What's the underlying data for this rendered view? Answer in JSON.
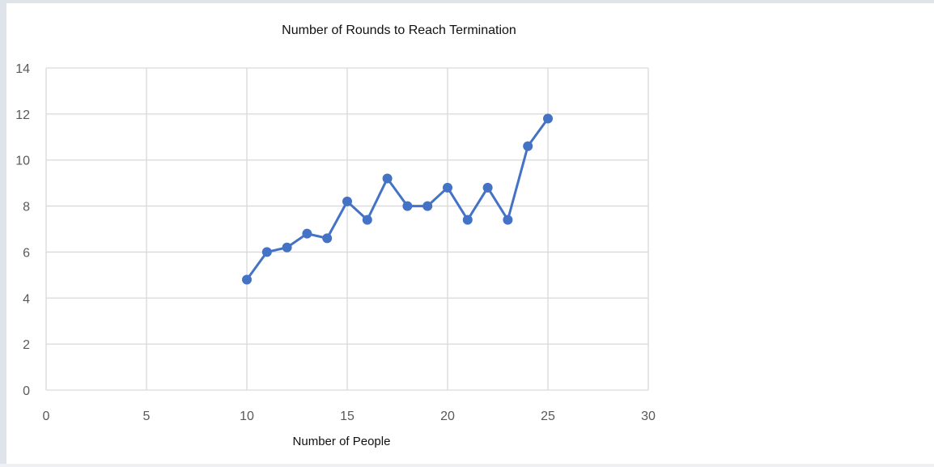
{
  "chart_data": {
    "type": "scatter",
    "title": "Number of Rounds to Reach Termination",
    "xlabel": "Number of People",
    "ylabel": "",
    "xlim": [
      0,
      30
    ],
    "ylim": [
      0,
      14
    ],
    "xticks": [
      0,
      5,
      10,
      15,
      20,
      25,
      30
    ],
    "yticks": [
      0,
      2,
      4,
      6,
      8,
      10,
      12,
      14
    ],
    "grid": true,
    "legend": "none",
    "series": [
      {
        "color": "#4472c4",
        "marker": "circle",
        "line": "straight",
        "x": [
          10,
          11,
          12,
          13,
          14,
          15,
          16,
          17,
          18,
          19,
          20,
          21,
          22,
          23,
          24,
          25
        ],
        "y": [
          4.8,
          6.0,
          6.2,
          6.8,
          6.6,
          8.2,
          7.4,
          9.2,
          8.0,
          8.0,
          8.8,
          7.4,
          8.8,
          7.4,
          10.6,
          11.8
        ]
      }
    ]
  }
}
